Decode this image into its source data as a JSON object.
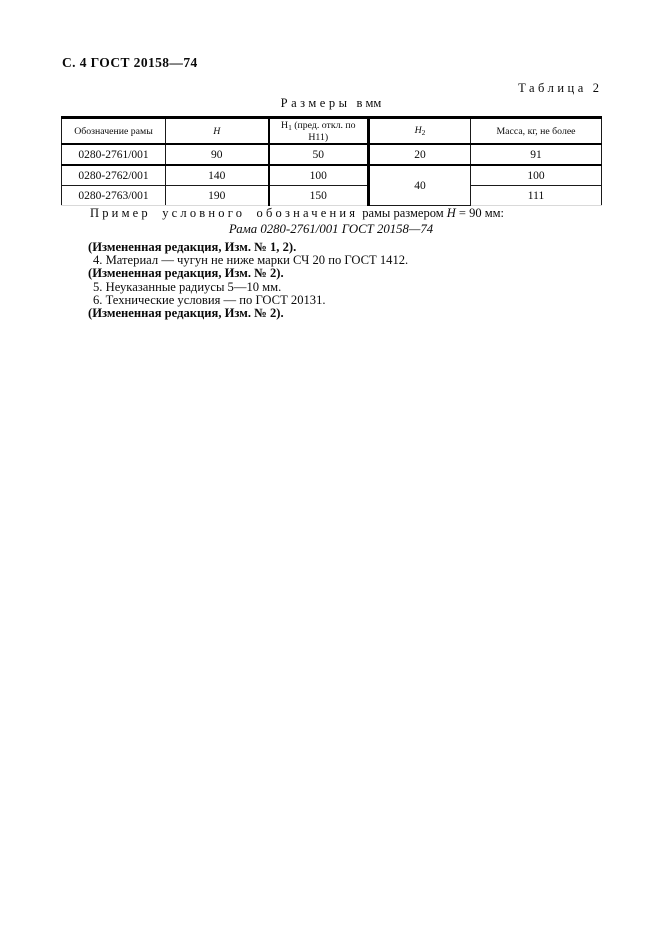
{
  "page": {
    "ref": "С. 4 ГОСТ 20158—74"
  },
  "caption": {
    "word": "Таблица",
    "number": "2"
  },
  "units": {
    "word": "Размеры",
    "suffix": "в мм"
  },
  "table": {
    "header": {
      "col1": "Обозначение рамы",
      "col2_var": "H",
      "col3_main": "Н",
      "col3_sub": "1",
      "col3_rest": "(пред. откл. по Н11)",
      "col4_var": "H",
      "col4_sub": "2",
      "col5": "Масса, кг, не более"
    },
    "rows": [
      {
        "designation": "0280-2761/001",
        "h": "90",
        "h1": "50",
        "h2": "20",
        "mass": "91"
      },
      {
        "designation": "0280-2762/001",
        "h": "140",
        "h1": "100",
        "h2": "40",
        "mass": "100"
      },
      {
        "designation": "0280-2763/001",
        "h": "190",
        "h1": "150",
        "mass": "111"
      }
    ]
  },
  "example": {
    "lead": "Пример условного обозначения",
    "mid": "рамы размером",
    "var": "H",
    "tail": "= 90 мм:",
    "designation": "Рама 0280-2761/001 ГОСТ 20158—74"
  },
  "notes": {
    "amended_1_2": "(Измененная редакция, Изм. № 1, 2).",
    "item4": "4.  Материал — чугун не ниже марки СЧ 20 по ГОСТ 1412.",
    "amended_2a": "(Измененная редакция, Изм. № 2).",
    "item5": "5.  Неуказанные радиусы 5—10 мм.",
    "item6": "6.  Технические условия — по ГОСТ 20131.",
    "amended_2b": "(Измененная редакция, Изм. № 2)."
  }
}
